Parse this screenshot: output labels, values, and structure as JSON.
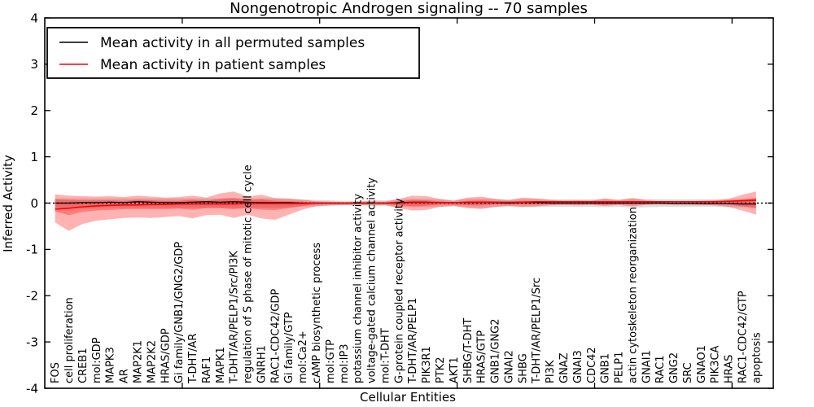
{
  "figure": {
    "title": "Nongenotropic Androgen signaling -- 70 samples",
    "xlabel": "Cellular Entities",
    "ylabel": "Inferred Activity"
  },
  "legend": {
    "entries": [
      {
        "label": "Mean activity in all permuted samples",
        "color": "#000000"
      },
      {
        "label": "Mean activity in patient samples",
        "color": "#ff0000"
      }
    ]
  },
  "chart_data": {
    "type": "line",
    "title": "Nongenotropic Androgen signaling -- 70 samples",
    "xlabel": "Cellular Entities",
    "ylabel": "Inferred Activity",
    "ylim": [
      -4,
      4
    ],
    "yticks": [
      4,
      3,
      2,
      1,
      0,
      -1,
      -2,
      -3,
      -4
    ],
    "yticklabels": [
      "4",
      "3",
      "2",
      "1",
      "0",
      "-1",
      "-2",
      "-3",
      "-4"
    ],
    "xticks": [
      10,
      20,
      30,
      40,
      50
    ],
    "grid": false,
    "zero_line": true,
    "legend_position": "upper left",
    "categories": [
      "FOS",
      "cell proliferation",
      "CREB1",
      "mol:GDP",
      "MAPK3",
      "AR",
      "MAP2K1",
      "MAP2K2",
      "HRAS/GDP",
      "Gi family/GNB1/GNG2/GDP",
      "T-DHT/AR",
      "RAF1",
      "MAPK1",
      "T-DHT/AR/PELP1/Src/PI3K",
      "regulation of S phase of mitotic cell cycle",
      "GNRH1",
      "RAC1-CDC42/GDP",
      "Gi family/GTP",
      "mol:Ca2+",
      "cAMP biosynthetic process",
      "mol:GTP",
      "mol:IP3",
      "potassium channel inhibitor activity",
      "voltage-gated calcium channel activity",
      "mol:T-DHT",
      "G-protein coupled receptor activity",
      "T-DHT/AR/PELP1",
      "PIK3R1",
      "PTK2",
      "AKT1",
      "SHBG/T-DHT",
      "HRAS/GTP",
      "GNB1/GNG2",
      "GNAI2",
      "SHBG",
      "T-DHT/AR/PELP1/Src",
      "PI3K",
      "GNAZ",
      "GNAI3",
      "CDC42",
      "GNB1",
      "PELP1",
      "actin cytoskeleton reorganization",
      "GNAI1",
      "RAC1",
      "GNG2",
      "SRC",
      "GNAO1",
      "PIK3CA",
      "HRAS",
      "RAC1-CDC42/GTP",
      "apoptosis"
    ],
    "series": [
      {
        "name": "Mean activity in all permuted samples",
        "color": "#000000",
        "width": 1.3,
        "values": [
          0.0,
          0.0,
          0.01,
          0.01,
          0.02,
          0.01,
          0.03,
          0.02,
          0.01,
          0.01,
          0.02,
          0.03,
          0.02,
          0.03,
          0.02,
          0.01,
          0.01,
          0.01,
          0.0,
          0.0,
          0.0,
          0.0,
          0.0,
          0.0,
          0.0,
          0.01,
          0.02,
          0.02,
          0.01,
          0.01,
          0.01,
          0.01,
          0.01,
          0.0,
          0.01,
          0.01,
          0.0,
          0.0,
          0.0,
          0.0,
          0.0,
          0.0,
          0.0,
          0.0,
          0.0,
          -0.01,
          -0.01,
          -0.01,
          -0.01,
          -0.01,
          -0.02,
          -0.02
        ]
      },
      {
        "name": "Mean activity in patient samples",
        "color": "#ff0000",
        "width": 1.6,
        "values": [
          -0.13,
          -0.11,
          -0.08,
          -0.06,
          -0.05,
          -0.04,
          -0.04,
          -0.03,
          -0.03,
          -0.02,
          -0.02,
          -0.02,
          -0.02,
          -0.02,
          -0.01,
          -0.01,
          -0.01,
          -0.01,
          -0.01,
          0.0,
          0.0,
          0.0,
          0.0,
          0.0,
          0.0,
          0.0,
          0.01,
          0.01,
          0.01,
          0.01,
          0.02,
          0.02,
          0.02,
          0.02,
          0.02,
          0.03,
          0.03,
          0.03,
          0.03,
          0.03,
          0.03,
          0.03,
          0.03,
          0.03,
          0.03,
          0.03,
          0.03,
          0.03,
          0.03,
          0.04,
          0.05,
          0.06
        ]
      }
    ],
    "bands": [
      {
        "name": "permuted-samples-range",
        "color": "#bbbbbb",
        "opacity": 0.5,
        "upper": [
          0.1,
          0.1,
          0.1,
          0.1,
          0.1,
          0.1,
          0.1,
          0.1,
          0.1,
          0.1,
          0.1,
          0.1,
          0.1,
          0.11,
          0.1,
          0.1,
          0.1,
          0.09,
          0.08,
          0.07,
          0.06,
          0.05,
          0.05,
          0.06,
          0.06,
          0.08,
          0.09,
          0.09,
          0.08,
          0.07,
          0.09,
          0.1,
          0.09,
          0.08,
          0.09,
          0.09,
          0.08,
          0.08,
          0.08,
          0.08,
          0.09,
          0.08,
          0.1,
          0.09,
          0.08,
          0.08,
          0.08,
          0.08,
          0.08,
          0.09,
          0.09,
          0.1
        ],
        "lower": [
          -0.1,
          -0.1,
          -0.1,
          -0.1,
          -0.1,
          -0.1,
          -0.1,
          -0.1,
          -0.1,
          -0.1,
          -0.1,
          -0.1,
          -0.1,
          -0.11,
          -0.1,
          -0.1,
          -0.1,
          -0.09,
          -0.08,
          -0.07,
          -0.06,
          -0.05,
          -0.05,
          -0.06,
          -0.06,
          -0.08,
          -0.09,
          -0.09,
          -0.08,
          -0.07,
          -0.09,
          -0.1,
          -0.09,
          -0.08,
          -0.09,
          -0.09,
          -0.08,
          -0.08,
          -0.08,
          -0.08,
          -0.09,
          -0.08,
          -0.1,
          -0.09,
          -0.08,
          -0.08,
          -0.08,
          -0.08,
          -0.08,
          -0.09,
          -0.09,
          -0.1
        ]
      },
      {
        "name": "patient-samples-range-outer",
        "color": "#ff0000",
        "opacity": 0.3,
        "upper": [
          0.19,
          0.16,
          0.15,
          0.14,
          0.15,
          0.13,
          0.16,
          0.14,
          0.12,
          0.13,
          0.16,
          0.12,
          0.21,
          0.25,
          0.14,
          0.18,
          0.11,
          0.1,
          0.07,
          0.04,
          0.03,
          0.02,
          0.03,
          0.04,
          0.03,
          0.09,
          0.16,
          0.15,
          0.09,
          0.05,
          0.12,
          0.14,
          0.09,
          0.06,
          0.12,
          0.1,
          0.07,
          0.05,
          0.06,
          0.05,
          0.1,
          0.06,
          0.11,
          0.06,
          0.04,
          0.03,
          0.04,
          0.05,
          0.06,
          0.09,
          0.18,
          0.25
        ],
        "lower": [
          -0.42,
          -0.6,
          -0.45,
          -0.38,
          -0.35,
          -0.32,
          -0.31,
          -0.32,
          -0.3,
          -0.28,
          -0.33,
          -0.26,
          -0.25,
          -0.32,
          -0.25,
          -0.33,
          -0.36,
          -0.25,
          -0.14,
          -0.07,
          -0.05,
          -0.04,
          -0.04,
          -0.05,
          -0.04,
          -0.11,
          -0.16,
          -0.15,
          -0.08,
          -0.06,
          -0.11,
          -0.13,
          -0.08,
          -0.06,
          -0.08,
          -0.07,
          -0.05,
          -0.04,
          -0.05,
          -0.04,
          -0.06,
          -0.04,
          -0.07,
          -0.04,
          -0.03,
          -0.03,
          -0.03,
          -0.04,
          -0.05,
          -0.08,
          -0.16,
          -0.25
        ]
      },
      {
        "name": "patient-samples-range-inner",
        "color": "#ff0000",
        "opacity": 0.3,
        "upper": [
          0.08,
          0.07,
          0.06,
          0.06,
          0.06,
          0.05,
          0.07,
          0.06,
          0.05,
          0.05,
          0.07,
          0.05,
          0.09,
          0.11,
          0.06,
          0.08,
          0.05,
          0.04,
          0.03,
          0.02,
          0.01,
          0.01,
          0.01,
          0.02,
          0.01,
          0.04,
          0.07,
          0.06,
          0.04,
          0.02,
          0.05,
          0.06,
          0.04,
          0.03,
          0.05,
          0.04,
          0.03,
          0.02,
          0.03,
          0.02,
          0.04,
          0.03,
          0.05,
          0.03,
          0.02,
          0.01,
          0.02,
          0.02,
          0.03,
          0.04,
          0.08,
          0.11
        ],
        "lower": [
          -0.18,
          -0.26,
          -0.19,
          -0.16,
          -0.15,
          -0.13,
          -0.13,
          -0.13,
          -0.13,
          -0.12,
          -0.14,
          -0.11,
          -0.11,
          -0.13,
          -0.11,
          -0.14,
          -0.15,
          -0.11,
          -0.06,
          -0.03,
          -0.02,
          -0.02,
          -0.02,
          -0.02,
          -0.02,
          -0.05,
          -0.07,
          -0.06,
          -0.03,
          -0.03,
          -0.05,
          -0.05,
          -0.03,
          -0.03,
          -0.03,
          -0.03,
          -0.02,
          -0.02,
          -0.02,
          -0.02,
          -0.03,
          -0.02,
          -0.03,
          -0.02,
          -0.01,
          -0.01,
          -0.01,
          -0.02,
          -0.02,
          -0.03,
          -0.07,
          -0.11
        ]
      }
    ]
  }
}
